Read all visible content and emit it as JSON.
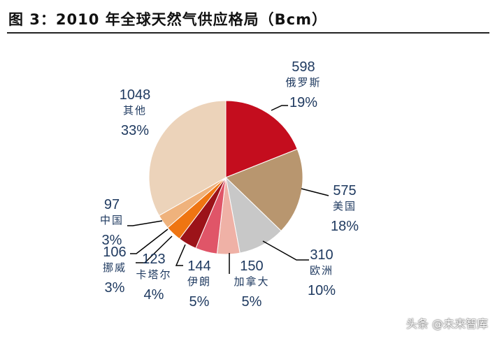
{
  "title": "图 3：2010 年全球天然气供应格局（Bcm）",
  "watermark": "头条 @未来智库",
  "chart_data": {
    "type": "pie",
    "title": "图 3：2010 年全球天然气供应格局（Bcm）",
    "start": "top",
    "direction": "clockwise",
    "slices": [
      {
        "name": "俄罗斯",
        "value": 598,
        "pct": "19%",
        "color": "#c40d1e"
      },
      {
        "name": "美国",
        "value": 575,
        "pct": "18%",
        "color": "#b8966f"
      },
      {
        "name": "欧洲",
        "value": 310,
        "pct": "10%",
        "color": "#c8c8c8"
      },
      {
        "name": "加拿大",
        "value": 150,
        "pct": "5%",
        "color": "#efb1a6"
      },
      {
        "name": "伊朗",
        "value": 144,
        "pct": "5%",
        "color": "#e05568"
      },
      {
        "name": "卡塔尔",
        "value": 123,
        "pct": "4%",
        "color": "#9c1319"
      },
      {
        "name": "挪威",
        "value": 106,
        "pct": "3%",
        "color": "#ef7512"
      },
      {
        "name": "中国",
        "value": 97,
        "pct": "3%",
        "color": "#efb27c"
      },
      {
        "name": "其他",
        "value": 1048,
        "pct": "33%",
        "color": "#ecd3ba"
      }
    ]
  }
}
